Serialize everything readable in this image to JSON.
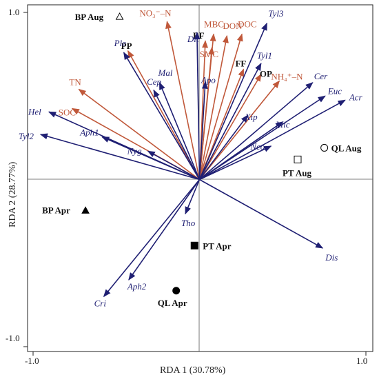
{
  "chart_data": {
    "type": "scatter",
    "subtype": "rda-biplot",
    "xlabel": "RDA 1 (30.78%)",
    "ylabel": "RDA 2 (28.77%)",
    "xlim": [
      -1.0,
      1.0
    ],
    "ylim": [
      -1.0,
      1.0
    ],
    "x_ticks": [
      "-1.0",
      "1.0"
    ],
    "y_ticks": [
      "1.0",
      "-1.0"
    ],
    "grid": false,
    "colors": {
      "species": "#1f1f73",
      "environment": "#c0583a",
      "axis": "#222222"
    },
    "species_vectors": [
      {
        "name": "Ple",
        "x": -0.455,
        "y": 0.76
      },
      {
        "name": "Cep",
        "x": -0.275,
        "y": 0.535
      },
      {
        "name": "Mal",
        "x": -0.24,
        "y": 0.58
      },
      {
        "name": "Hel",
        "x": -0.905,
        "y": 0.405
      },
      {
        "name": "Tyl2",
        "x": -0.955,
        "y": 0.27
      },
      {
        "name": "Aph1",
        "x": -0.585,
        "y": 0.255
      },
      {
        "name": "Nyg",
        "x": -0.31,
        "y": 0.17
      },
      {
        "name": "Dit",
        "x": -0.015,
        "y": 0.88
      },
      {
        "name": "Apo",
        "x": 0.035,
        "y": 0.585
      },
      {
        "name": "Tyl3",
        "x": 0.405,
        "y": 0.935
      },
      {
        "name": "Tyl1",
        "x": 0.37,
        "y": 0.695
      },
      {
        "name": "Xip",
        "x": 0.29,
        "y": 0.385
      },
      {
        "name": "Mic",
        "x": 0.5,
        "y": 0.345
      },
      {
        "name": "Neo",
        "x": 0.43,
        "y": 0.2
      },
      {
        "name": "Cer",
        "x": 0.68,
        "y": 0.58
      },
      {
        "name": "Euc",
        "x": 0.755,
        "y": 0.5
      },
      {
        "name": "Acr",
        "x": 0.875,
        "y": 0.475
      },
      {
        "name": "Tho",
        "x": -0.085,
        "y": -0.205
      },
      {
        "name": "Dis",
        "x": 0.74,
        "y": -0.41
      },
      {
        "name": "Aph2",
        "x": -0.425,
        "y": -0.6
      },
      {
        "name": "Cri",
        "x": -0.575,
        "y": -0.7
      }
    ],
    "environment_vectors": [
      {
        "name": "NO₃⁻–N",
        "x": -0.195,
        "y": 0.945
      },
      {
        "name": "MBC",
        "x": 0.085,
        "y": 0.87
      },
      {
        "name": "BF",
        "x": 0.035,
        "y": 0.83
      },
      {
        "name": "DON",
        "x": 0.165,
        "y": 0.86
      },
      {
        "name": "DOC",
        "x": 0.255,
        "y": 0.87
      },
      {
        "name": "SMC",
        "x": 0.075,
        "y": 0.79
      },
      {
        "name": "FF",
        "x": 0.265,
        "y": 0.66
      },
      {
        "name": "OP",
        "x": 0.37,
        "y": 0.63
      },
      {
        "name": "NH₄⁺–N",
        "x": 0.48,
        "y": 0.59
      },
      {
        "name": "PP",
        "x": -0.43,
        "y": 0.77
      },
      {
        "name": "TN",
        "x": -0.725,
        "y": 0.54
      },
      {
        "name": "SOC",
        "x": -0.765,
        "y": 0.425
      }
    ],
    "sites": [
      {
        "name": "BP Aug",
        "x": -0.48,
        "y": 0.975,
        "marker": "triangle-open"
      },
      {
        "name": "BP Apr",
        "x": -0.685,
        "y": -0.185,
        "marker": "triangle-filled"
      },
      {
        "name": "PT Aug",
        "x": 0.59,
        "y": 0.12,
        "marker": "square-open"
      },
      {
        "name": "PT Apr",
        "x": -0.03,
        "y": -0.395,
        "marker": "square-filled"
      },
      {
        "name": "QL Aug",
        "x": 0.75,
        "y": 0.19,
        "marker": "circle-open"
      },
      {
        "name": "QL Apr",
        "x": -0.14,
        "y": -0.665,
        "marker": "circle-filled"
      }
    ]
  }
}
